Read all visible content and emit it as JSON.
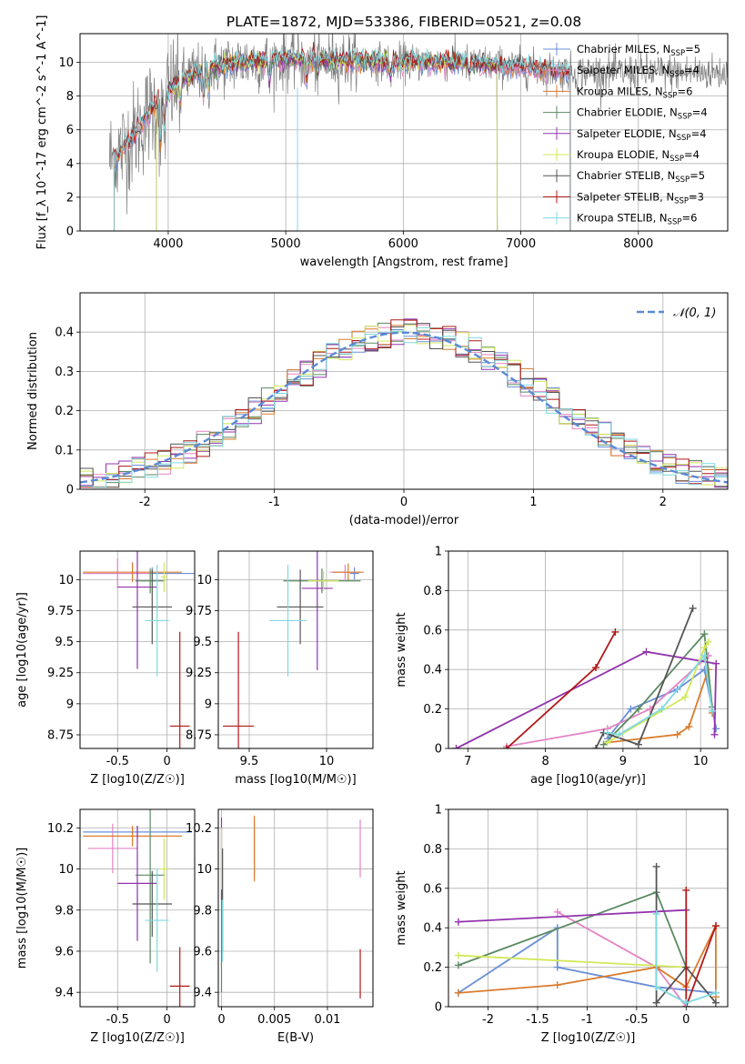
{
  "figure": {
    "title": "PLATE=1872, MJD=53386, FIBERID=0521, z=0.08"
  },
  "colors": {
    "miles_chabrier": "#6a8fd8",
    "miles_salpeter": "#e384c4",
    "miles_kroupa": "#d97b2b",
    "elodie_chabrier": "#5a8a62",
    "elodie_salpeter": "#9333ad",
    "elodie_kroupa": "#d2e85a",
    "stelib_chabrier": "#555555",
    "stelib_salpeter": "#b01818",
    "stelib_kroupa": "#7fd9e0",
    "gaussian": "#5b8ad6",
    "data": "#808080"
  },
  "chart_data": [
    {
      "id": "spectrum",
      "type": "line",
      "title": "PLATE=1872, MJD=53386, FIBERID=0521, z=0.08",
      "xlabel": "wavelength [Angstrom, rest frame]",
      "ylabel": "Flux [f_λ 10^-17 erg cm^-2 s^-1 A^-1]",
      "xlim": [
        3250,
        8760
      ],
      "ylim": [
        0,
        11.7
      ],
      "xticks": [
        4000,
        5000,
        6000,
        7000,
        8000
      ],
      "yticks": [
        0,
        2,
        4,
        6,
        8,
        10
      ],
      "legend_position": "right",
      "series": [
        {
          "name": "Chabrier MILES, N_SSP=5",
          "key": "miles_chabrier",
          "range": [
            3540,
            7420
          ]
        },
        {
          "name": "Salpeter MILES, N_SSP=4",
          "key": "miles_salpeter",
          "range": [
            3540,
            7420
          ]
        },
        {
          "name": "Kroupa MILES, N_SSP=6",
          "key": "miles_kroupa",
          "range": [
            3540,
            7420
          ]
        },
        {
          "name": "Chabrier ELODIE, N_SSP=4",
          "key": "elodie_chabrier",
          "range": [
            3900,
            6800
          ]
        },
        {
          "name": "Salpeter ELODIE, N_SSP=4",
          "key": "elodie_salpeter",
          "range": [
            3900,
            6800
          ]
        },
        {
          "name": "Kroupa ELODIE, N_SSP=4",
          "key": "elodie_kroupa",
          "range": [
            3900,
            6800
          ]
        },
        {
          "name": "Chabrier STELIB, N_SSP=5",
          "key": "stelib_chabrier",
          "range": [
            3540,
            7420
          ]
        },
        {
          "name": "Salpeter STELIB, N_SSP=3",
          "key": "stelib_salpeter",
          "range": [
            3540,
            7420
          ]
        },
        {
          "name": "Kroupa STELIB, N_SSP=6",
          "key": "stelib_kroupa",
          "range": [
            3540,
            7420
          ]
        }
      ],
      "legend_labels": [
        {
          "name": "Chabrier MILES, N",
          "sub": "SSP",
          "rest": "=5",
          "key": "miles_chabrier"
        },
        {
          "name": "Salpeter MILES, N",
          "sub": "SSP",
          "rest": "=4",
          "key": "miles_salpeter"
        },
        {
          "name": "Kroupa MILES, N",
          "sub": "SSP",
          "rest": "=6",
          "key": "miles_kroupa"
        },
        {
          "name": "Chabrier ELODIE, N",
          "sub": "SSP",
          "rest": "=4",
          "key": "elodie_chabrier"
        },
        {
          "name": "Salpeter ELODIE, N",
          "sub": "SSP",
          "rest": "=4",
          "key": "elodie_salpeter"
        },
        {
          "name": "Kroupa ELODIE, N",
          "sub": "SSP",
          "rest": "=4",
          "key": "elodie_kroupa"
        },
        {
          "name": "Chabrier STELIB, N",
          "sub": "SSP",
          "rest": "=5",
          "key": "stelib_chabrier"
        },
        {
          "name": "Salpeter STELIB, N",
          "sub": "SSP",
          "rest": "=3",
          "key": "stelib_salpeter"
        },
        {
          "name": "Kroupa STELIB, N",
          "sub": "SSP",
          "rest": "=6",
          "key": "stelib_kroupa"
        }
      ],
      "continuum_profile": {
        "x": [
          3540,
          3700,
          3900,
          4100,
          4300,
          4600,
          5000,
          5500,
          6000,
          6500,
          7000,
          7420
        ],
        "y": [
          4.3,
          5.6,
          7.6,
          8.9,
          9.6,
          10.0,
          10.2,
          10.1,
          10.0,
          10.0,
          9.7,
          9.4
        ]
      }
    },
    {
      "id": "residuals",
      "type": "line",
      "xlabel": "(data-model)/error",
      "ylabel": "Normed distribution",
      "xlim": [
        -2.5,
        2.5
      ],
      "ylim": [
        0,
        0.5
      ],
      "xticks": [
        -2,
        -1,
        0,
        1,
        2
      ],
      "yticks": [
        0.0,
        0.1,
        0.2,
        0.3,
        0.4
      ],
      "grid": true,
      "legend": "𝒩(0, 1)",
      "legend_position": "top-right",
      "bin_edges": [
        -2.5,
        -2.4,
        -2.3,
        -2.2,
        -2.1,
        -2.0,
        -1.9,
        -1.8,
        -1.7,
        -1.6,
        -1.5,
        -1.4,
        -1.3,
        -1.2,
        -1.1,
        -1.0,
        -0.9,
        -0.8,
        -0.7,
        -0.6,
        -0.5,
        -0.4,
        -0.3,
        -0.2,
        -0.1,
        0.0,
        0.1,
        0.2,
        0.3,
        0.4,
        0.5,
        0.6,
        0.7,
        0.8,
        0.9,
        1.0,
        1.1,
        1.2,
        1.3,
        1.4,
        1.5,
        1.6,
        1.7,
        1.8,
        1.9,
        2.0,
        2.1,
        2.2,
        2.3,
        2.4,
        2.5
      ],
      "hist_series": [
        "miles_chabrier",
        "miles_salpeter",
        "miles_kroupa",
        "elodie_chabrier",
        "elodie_salpeter",
        "elodie_kroupa",
        "stelib_chabrier",
        "stelib_salpeter",
        "stelib_kroupa"
      ]
    },
    {
      "id": "age_vs_Z",
      "type": "scatter",
      "xlabel": "Z [log10(Z/Z☉)]",
      "ylabel": "age [log10(age/yr)]",
      "xlim": [
        -0.88,
        0.28
      ],
      "ylim": [
        8.64,
        10.23
      ],
      "xticks": [
        -0.5,
        0.0
      ],
      "yticks": [
        8.75,
        9.0,
        9.25,
        9.5,
        9.75,
        10.0
      ],
      "points": [
        {
          "key": "miles_chabrier",
          "x": -0.15,
          "y": 10.05,
          "xerr": 0.7,
          "yerr": 0.05
        },
        {
          "key": "miles_salpeter",
          "x": -0.5,
          "y": 10.05,
          "xerr": 0.35,
          "yerr": 0.12
        },
        {
          "key": "miles_kroupa",
          "x": -0.35,
          "y": 10.06,
          "xerr": 0.5,
          "yerr": 0.08
        },
        {
          "key": "elodie_chabrier",
          "x": -0.17,
          "y": 9.99,
          "xerr": 0.15,
          "yerr": 0.1
        },
        {
          "key": "elodie_salpeter",
          "x": -0.3,
          "y": 9.94,
          "xerr": 0.2,
          "yerr": 0.66
        },
        {
          "key": "elodie_kroupa",
          "x": -0.03,
          "y": 10.02,
          "xerr": 0.03,
          "yerr": 0.12
        },
        {
          "key": "stelib_chabrier",
          "x": -0.15,
          "y": 9.78,
          "xerr": 0.2,
          "yerr": 0.3
        },
        {
          "key": "stelib_salpeter",
          "x": 0.13,
          "y": 8.82,
          "xerr": 0.1,
          "yerr": 0.76
        },
        {
          "key": "stelib_kroupa",
          "x": -0.1,
          "y": 9.67,
          "xerr": 0.12,
          "yerr": 0.45
        }
      ]
    },
    {
      "id": "age_vs_mass",
      "type": "scatter",
      "xlabel": "mass [log10(M/M☉)]",
      "ylabel": "",
      "xlim": [
        9.3,
        10.3
      ],
      "ylim": [
        8.64,
        10.23
      ],
      "xticks": [
        9.5,
        10.0
      ],
      "yticks": [
        8.75,
        9.0,
        9.25,
        9.5,
        9.75,
        10.0
      ],
      "points": [
        {
          "key": "miles_chabrier",
          "x": 10.18,
          "y": 10.05,
          "xerr": 0.03,
          "yerr": 0.05
        },
        {
          "key": "miles_salpeter",
          "x": 10.12,
          "y": 10.06,
          "xerr": 0.1,
          "yerr": 0.06
        },
        {
          "key": "miles_kroupa",
          "x": 10.14,
          "y": 10.06,
          "xerr": 0.1,
          "yerr": 0.07
        },
        {
          "key": "elodie_chabrier",
          "x": 9.97,
          "y": 9.99,
          "xerr": 0.25,
          "yerr": 0.1
        },
        {
          "key": "elodie_salpeter",
          "x": 9.94,
          "y": 9.93,
          "xerr": 0.1,
          "yerr": 0.66
        },
        {
          "key": "elodie_kroupa",
          "x": 9.98,
          "y": 9.99,
          "xerr": 0.1,
          "yerr": 0.08
        },
        {
          "key": "stelib_chabrier",
          "x": 9.83,
          "y": 9.78,
          "xerr": 0.15,
          "yerr": 0.3
        },
        {
          "key": "stelib_salpeter",
          "x": 9.43,
          "y": 8.82,
          "xerr": 0.1,
          "yerr": 0.76
        },
        {
          "key": "stelib_kroupa",
          "x": 9.75,
          "y": 9.67,
          "xerr": 0.12,
          "yerr": 0.45
        }
      ]
    },
    {
      "id": "weight_vs_age",
      "type": "line",
      "xlabel": "age [log10(age/yr)]",
      "ylabel": "mass weight",
      "xlim": [
        6.75,
        10.35
      ],
      "ylim": [
        0.0,
        1.0
      ],
      "xticks": [
        7,
        8,
        9,
        10
      ],
      "yticks": [
        0.0,
        0.2,
        0.4,
        0.6,
        0.8,
        1.0
      ],
      "grid": true,
      "series": [
        {
          "key": "miles_chabrier",
          "x": [
            8.8,
            9.1,
            9.7,
            10.05,
            10.2
          ],
          "y": [
            0.05,
            0.2,
            0.3,
            0.4,
            0.1
          ]
        },
        {
          "key": "miles_salpeter",
          "x": [
            7.5,
            8.8,
            9.35,
            10.1
          ],
          "y": [
            0.01,
            0.1,
            0.2,
            0.47
          ]
        },
        {
          "key": "miles_kroupa",
          "x": [
            8.8,
            9.7,
            9.85,
            10.1,
            10.15
          ],
          "y": [
            0.03,
            0.07,
            0.11,
            0.4,
            0.18
          ]
        },
        {
          "key": "elodie_chabrier",
          "x": [
            8.75,
            9.2,
            10.05,
            10.15
          ],
          "y": [
            0.02,
            0.2,
            0.58,
            0.21
          ]
        },
        {
          "key": "elodie_salpeter",
          "x": [
            6.85,
            9.3,
            10.2,
            10.18
          ],
          "y": [
            0.0,
            0.49,
            0.43,
            0.07
          ]
        },
        {
          "key": "elodie_kroupa",
          "x": [
            8.8,
            9.8,
            10.05,
            10.1
          ],
          "y": [
            0.03,
            0.26,
            0.51,
            0.54
          ]
        },
        {
          "key": "stelib_chabrier",
          "x": [
            8.65,
            8.75,
            9.2,
            9.9
          ],
          "y": [
            0.0,
            0.08,
            0.02,
            0.71
          ]
        },
        {
          "key": "stelib_salpeter",
          "x": [
            7.5,
            8.65,
            8.9
          ],
          "y": [
            0.0,
            0.41,
            0.59
          ]
        },
        {
          "key": "stelib_kroupa",
          "x": [
            8.8,
            8.95,
            9.5,
            10.05,
            10.15
          ],
          "y": [
            0.08,
            0.07,
            0.2,
            0.47,
            0.19
          ]
        }
      ]
    },
    {
      "id": "mass_vs_Z",
      "type": "scatter",
      "xlabel": "Z [log10(Z/Z☉)]",
      "ylabel": "mass [log10(M/M☉)]",
      "xlim": [
        -0.88,
        0.28
      ],
      "ylim": [
        9.33,
        10.29
      ],
      "xticks": [
        -0.5,
        0.0
      ],
      "yticks": [
        9.4,
        9.6,
        9.8,
        10.0,
        10.2
      ],
      "points": [
        {
          "key": "miles_chabrier",
          "x": -0.3,
          "y": 10.18,
          "xerr": 0.55,
          "yerr": 0.03
        },
        {
          "key": "miles_salpeter",
          "x": -0.55,
          "y": 10.1,
          "xerr": 0.25,
          "yerr": 0.12
        },
        {
          "key": "miles_kroupa",
          "x": -0.35,
          "y": 10.16,
          "xerr": 0.5,
          "yerr": 0.05
        },
        {
          "key": "elodie_chabrier",
          "x": -0.17,
          "y": 9.97,
          "xerr": 0.15,
          "yerr": 0.43
        },
        {
          "key": "elodie_salpeter",
          "x": -0.3,
          "y": 9.93,
          "xerr": 0.2,
          "yerr": 0.28
        },
        {
          "key": "elodie_kroupa",
          "x": -0.03,
          "y": 10.0,
          "xerr": 0.05,
          "yerr": 0.15
        },
        {
          "key": "stelib_chabrier",
          "x": -0.15,
          "y": 9.83,
          "xerr": 0.2,
          "yerr": 0.16
        },
        {
          "key": "stelib_salpeter",
          "x": 0.13,
          "y": 9.43,
          "xerr": 0.1,
          "yerr": 0.19
        },
        {
          "key": "stelib_kroupa",
          "x": -0.1,
          "y": 9.75,
          "xerr": 0.12,
          "yerr": 0.25
        }
      ]
    },
    {
      "id": "mass_vs_EBV",
      "type": "scatter",
      "xlabel": "E(B-V)",
      "ylabel": "",
      "xlim": [
        -0.0003,
        0.0143
      ],
      "ylim": [
        9.33,
        10.29
      ],
      "xticks": [
        0.0,
        0.005,
        0.01
      ],
      "yticks": [
        9.4,
        9.6,
        9.8,
        10.0,
        10.2
      ],
      "points": [
        {
          "key": "miles_chabrier",
          "x": 0.0031,
          "y": 10.1,
          "xerr": 0,
          "yerr": 0.14
        },
        {
          "key": "miles_salpeter",
          "x": 0.0131,
          "y": 10.1,
          "xerr": 0,
          "yerr": 0.14
        },
        {
          "key": "miles_kroupa",
          "x": 0.0031,
          "y": 10.1,
          "xerr": 0,
          "yerr": 0.16
        },
        {
          "key": "elodie_chabrier",
          "x": 0.0,
          "y": 9.8,
          "xerr": 0,
          "yerr": 0.4
        },
        {
          "key": "elodie_salpeter",
          "x": 0.0,
          "y": 10.05,
          "xerr": 0,
          "yerr": 0.2
        },
        {
          "key": "elodie_kroupa",
          "x": 0.0,
          "y": 10.05,
          "xerr": 0,
          "yerr": 0.15
        },
        {
          "key": "stelib_chabrier",
          "x": 0.0001,
          "y": 9.85,
          "xerr": 0,
          "yerr": 0.25
        },
        {
          "key": "stelib_salpeter",
          "x": 0.0131,
          "y": 9.49,
          "xerr": 0,
          "yerr": 0.12
        },
        {
          "key": "stelib_kroupa",
          "x": 0.0001,
          "y": 9.7,
          "xerr": 0,
          "yerr": 0.15
        }
      ]
    },
    {
      "id": "weight_vs_Z",
      "type": "line",
      "xlabel": "Z [log10(Z/Z☉)]",
      "ylabel": "mass weight",
      "xlim": [
        -2.4,
        0.42
      ],
      "ylim": [
        0.0,
        1.0
      ],
      "xticks": [
        -2.0,
        -1.5,
        -1.0,
        -0.5,
        0.0
      ],
      "yticks": [
        0.0,
        0.2,
        0.4,
        0.6,
        0.8,
        1.0
      ],
      "grid": true,
      "series": [
        {
          "key": "miles_chabrier",
          "x": [
            -2.3,
            -1.3,
            -1.3,
            -0.3,
            0.3
          ],
          "y": [
            0.07,
            0.4,
            0.2,
            0.1,
            0.07
          ]
        },
        {
          "key": "miles_salpeter",
          "x": [
            -1.3,
            -0.3,
            0.0
          ],
          "y": [
            0.48,
            0.2,
            0.0
          ]
        },
        {
          "key": "miles_kroupa",
          "x": [
            -2.3,
            -1.3,
            -0.3,
            0.0,
            0.3,
            0.3
          ],
          "y": [
            0.07,
            0.11,
            0.2,
            0.1,
            0.41,
            0.05
          ]
        },
        {
          "key": "elodie_chabrier",
          "x": [
            -2.3,
            -0.3,
            0.0
          ],
          "y": [
            0.21,
            0.58,
            0.2
          ]
        },
        {
          "key": "elodie_salpeter",
          "x": [
            -2.3,
            0.0
          ],
          "y": [
            0.43,
            0.49
          ]
        },
        {
          "key": "elodie_kroupa",
          "x": [
            -2.3,
            0.0
          ],
          "y": [
            0.26,
            0.2
          ]
        },
        {
          "key": "stelib_chabrier",
          "x": [
            -0.3,
            -0.3,
            0.0,
            0.3
          ],
          "y": [
            0.71,
            0.02,
            0.2,
            0.02
          ]
        },
        {
          "key": "stelib_salpeter",
          "x": [
            0.0,
            0.0,
            0.3
          ],
          "y": [
            0.59,
            0.0,
            0.41
          ]
        },
        {
          "key": "stelib_kroupa",
          "x": [
            -0.3,
            -0.3,
            0.0,
            0.3
          ],
          "y": [
            0.47,
            0.1,
            0.02,
            0.07
          ]
        }
      ]
    }
  ],
  "labels": {
    "residuals_legend": "𝒩(0, 1)"
  }
}
